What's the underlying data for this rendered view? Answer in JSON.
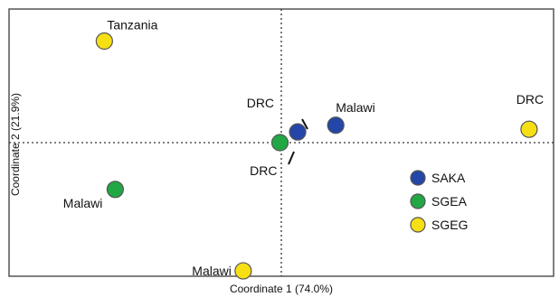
{
  "chart_data": {
    "type": "scatter",
    "xlabel": "Coordinate 1 (74.0%)",
    "ylabel": "Coordinate 2 (21.9%)",
    "xlim": [
      -1.0,
      1.0
    ],
    "ylim": [
      -1.0,
      1.0
    ],
    "grid": false,
    "reference_lines": {
      "x": 0,
      "y": 0
    },
    "legend_position": "right",
    "series": [
      {
        "name": "SAKA",
        "color": "#2446a8",
        "points": [
          {
            "label": "DRC",
            "x": 0.06,
            "y": 0.08
          },
          {
            "label": "Malawi",
            "x": 0.2,
            "y": 0.13
          }
        ]
      },
      {
        "name": "SGEA",
        "color": "#22a745",
        "points": [
          {
            "label": "DRC",
            "x": -0.005,
            "y": 0.0
          },
          {
            "label": "Malawi",
            "x": -0.61,
            "y": -0.35
          }
        ]
      },
      {
        "name": "SGEG",
        "color": "#f6e014",
        "points": [
          {
            "label": "Tanzania",
            "x": -0.65,
            "y": 0.76
          },
          {
            "label": "DRC",
            "x": 0.91,
            "y": 0.1
          },
          {
            "label": "Malawi",
            "x": -0.14,
            "y": -0.96
          }
        ]
      }
    ]
  }
}
